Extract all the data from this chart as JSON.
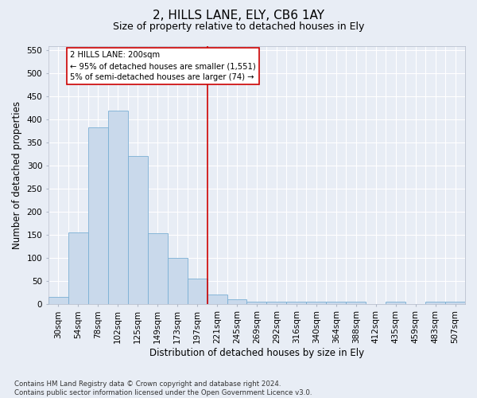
{
  "title": "2, HILLS LANE, ELY, CB6 1AY",
  "subtitle": "Size of property relative to detached houses in Ely",
  "xlabel": "Distribution of detached houses by size in Ely",
  "ylabel": "Number of detached properties",
  "footer_line1": "Contains HM Land Registry data © Crown copyright and database right 2024.",
  "footer_line2": "Contains public sector information licensed under the Open Government Licence v3.0.",
  "bin_labels": [
    "30sqm",
    "54sqm",
    "78sqm",
    "102sqm",
    "125sqm",
    "149sqm",
    "173sqm",
    "197sqm",
    "221sqm",
    "245sqm",
    "269sqm",
    "292sqm",
    "316sqm",
    "340sqm",
    "364sqm",
    "388sqm",
    "412sqm",
    "435sqm",
    "459sqm",
    "483sqm",
    "507sqm"
  ],
  "bar_values": [
    15,
    155,
    383,
    420,
    320,
    153,
    100,
    55,
    20,
    10,
    5,
    5,
    5,
    5,
    5,
    5,
    0,
    5,
    0,
    5,
    5
  ],
  "bar_color": "#c9d9eb",
  "bar_edge_color": "#7aafd4",
  "property_line_bin": 7,
  "annotation_text_1": "2 HILLS LANE: 200sqm",
  "annotation_text_2": "← 95% of detached houses are smaller (1,551)",
  "annotation_text_3": "5% of semi-detached houses are larger (74) →",
  "annotation_box_color": "#ffffff",
  "annotation_box_edge_color": "#cc0000",
  "line_color": "#cc0000",
  "ylim_max": 560,
  "yticks": [
    0,
    50,
    100,
    150,
    200,
    250,
    300,
    350,
    400,
    450,
    500,
    550
  ],
  "bg_color": "#e8edf5",
  "grid_color": "#ffffff",
  "title_fontsize": 11,
  "subtitle_fontsize": 9,
  "tick_fontsize": 7.5,
  "ylabel_fontsize": 8.5,
  "xlabel_fontsize": 8.5,
  "footer_fontsize": 6.2
}
